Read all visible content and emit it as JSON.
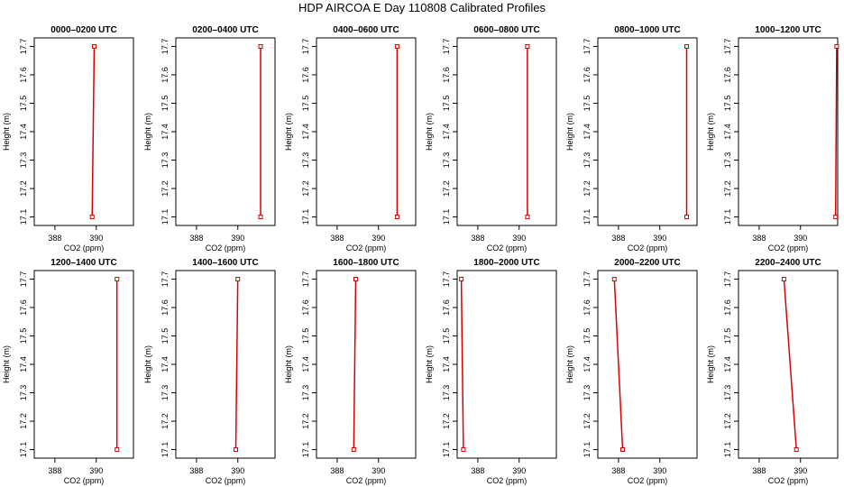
{
  "figure": {
    "title": "HDP AIRCOA E  Day 110808  Calibrated Profiles"
  },
  "colors": {
    "profile": "#dd0000",
    "axis": "#000000"
  },
  "chart_data": [
    {
      "type": "line",
      "title": "0000–0200 UTC",
      "xlabel": "CO2 (ppm)",
      "ylabel": "Height (m)",
      "xlim": [
        387.0,
        391.8
      ],
      "ylim": [
        17.07,
        17.73
      ],
      "xticks": [
        388,
        390
      ],
      "yticks": [
        17.1,
        17.2,
        17.3,
        17.4,
        17.5,
        17.6,
        17.7
      ],
      "grid": false,
      "series": [
        {
          "x": [
            389.8,
            389.9
          ],
          "y": [
            17.1,
            17.7
          ]
        }
      ]
    },
    {
      "type": "line",
      "title": "0200–0400 UTC",
      "xlabel": "CO2 (ppm)",
      "ylabel": "Height (m)",
      "xlim": [
        387.0,
        391.8
      ],
      "ylim": [
        17.07,
        17.73
      ],
      "xticks": [
        388,
        390
      ],
      "yticks": [
        17.1,
        17.2,
        17.3,
        17.4,
        17.5,
        17.6,
        17.7
      ],
      "grid": false,
      "series": [
        {
          "x": [
            391.1,
            391.1
          ],
          "y": [
            17.1,
            17.7
          ]
        }
      ]
    },
    {
      "type": "line",
      "title": "0400–0600 UTC",
      "xlabel": "CO2 (ppm)",
      "ylabel": "Height (m)",
      "xlim": [
        387.0,
        391.8
      ],
      "ylim": [
        17.07,
        17.73
      ],
      "xticks": [
        388,
        390
      ],
      "yticks": [
        17.1,
        17.2,
        17.3,
        17.4,
        17.5,
        17.6,
        17.7
      ],
      "grid": false,
      "series": [
        {
          "x": [
            390.9,
            390.9
          ],
          "y": [
            17.1,
            17.7
          ]
        }
      ]
    },
    {
      "type": "line",
      "title": "0600–0800 UTC",
      "xlabel": "CO2 (ppm)",
      "ylabel": "Height (m)",
      "xlim": [
        387.0,
        391.8
      ],
      "ylim": [
        17.07,
        17.73
      ],
      "xticks": [
        388,
        390
      ],
      "yticks": [
        17.1,
        17.2,
        17.3,
        17.4,
        17.5,
        17.6,
        17.7
      ],
      "grid": false,
      "series": [
        {
          "x": [
            390.4,
            390.4
          ],
          "y": [
            17.1,
            17.7
          ]
        }
      ]
    },
    {
      "type": "line",
      "title": "0800–1000 UTC",
      "xlabel": "CO2 (ppm)",
      "ylabel": "Height (m)",
      "xlim": [
        387.0,
        391.8
      ],
      "ylim": [
        17.07,
        17.73
      ],
      "xticks": [
        388,
        390
      ],
      "yticks": [
        17.1,
        17.2,
        17.3,
        17.4,
        17.5,
        17.6,
        17.7
      ],
      "grid": false,
      "series": [
        {
          "x": [
            391.3,
            391.3
          ],
          "y": [
            17.1,
            17.7
          ]
        }
      ]
    },
    {
      "type": "line",
      "title": "1000–1200 UTC",
      "xlabel": "CO2 (ppm)",
      "ylabel": "Height (m)",
      "xlim": [
        387.0,
        391.8
      ],
      "ylim": [
        17.07,
        17.73
      ],
      "xticks": [
        388,
        390
      ],
      "yticks": [
        17.1,
        17.2,
        17.3,
        17.4,
        17.5,
        17.6,
        17.7
      ],
      "grid": false,
      "series": [
        {
          "x": [
            391.7,
            391.75
          ],
          "y": [
            17.1,
            17.7
          ]
        }
      ]
    },
    {
      "type": "line",
      "title": "1200–1400 UTC",
      "xlabel": "CO2 (ppm)",
      "ylabel": "Height (m)",
      "xlim": [
        387.0,
        391.8
      ],
      "ylim": [
        17.07,
        17.73
      ],
      "xticks": [
        388,
        390
      ],
      "yticks": [
        17.1,
        17.2,
        17.3,
        17.4,
        17.5,
        17.6,
        17.7
      ],
      "grid": false,
      "series": [
        {
          "x": [
            391.0,
            391.0
          ],
          "y": [
            17.1,
            17.7
          ]
        }
      ]
    },
    {
      "type": "line",
      "title": "1400–1600 UTC",
      "xlabel": "CO2 (ppm)",
      "ylabel": "Height (m)",
      "xlim": [
        387.0,
        391.8
      ],
      "ylim": [
        17.07,
        17.73
      ],
      "xticks": [
        388,
        390
      ],
      "yticks": [
        17.1,
        17.2,
        17.3,
        17.4,
        17.5,
        17.6,
        17.7
      ],
      "grid": false,
      "series": [
        {
          "x": [
            389.9,
            390.0
          ],
          "y": [
            17.1,
            17.7
          ]
        }
      ]
    },
    {
      "type": "line",
      "title": "1600–1800 UTC",
      "xlabel": "CO2 (ppm)",
      "ylabel": "Height (m)",
      "xlim": [
        387.0,
        391.8
      ],
      "ylim": [
        17.07,
        17.73
      ],
      "xticks": [
        388,
        390
      ],
      "yticks": [
        17.1,
        17.2,
        17.3,
        17.4,
        17.5,
        17.6,
        17.7
      ],
      "grid": false,
      "series": [
        {
          "x": [
            388.8,
            388.9
          ],
          "y": [
            17.1,
            17.7
          ]
        }
      ]
    },
    {
      "type": "line",
      "title": "1800–2000 UTC",
      "xlabel": "CO2 (ppm)",
      "ylabel": "Height (m)",
      "xlim": [
        387.0,
        391.8
      ],
      "ylim": [
        17.07,
        17.73
      ],
      "xticks": [
        388,
        390
      ],
      "yticks": [
        17.1,
        17.2,
        17.3,
        17.4,
        17.5,
        17.6,
        17.7
      ],
      "grid": false,
      "series": [
        {
          "x": [
            387.3,
            387.2
          ],
          "y": [
            17.1,
            17.7
          ]
        }
      ]
    },
    {
      "type": "line",
      "title": "2000–2200 UTC",
      "xlabel": "CO2 (ppm)",
      "ylabel": "Height (m)",
      "xlim": [
        387.0,
        391.8
      ],
      "ylim": [
        17.07,
        17.73
      ],
      "xticks": [
        388,
        390
      ],
      "yticks": [
        17.1,
        17.2,
        17.3,
        17.4,
        17.5,
        17.6,
        17.7
      ],
      "grid": false,
      "series": [
        {
          "x": [
            388.2,
            387.8
          ],
          "y": [
            17.1,
            17.7
          ]
        }
      ]
    },
    {
      "type": "line",
      "title": "2200–2400 UTC",
      "xlabel": "CO2 (ppm)",
      "ylabel": "Height (m)",
      "xlim": [
        387.0,
        391.8
      ],
      "ylim": [
        17.07,
        17.73
      ],
      "xticks": [
        388,
        390
      ],
      "yticks": [
        17.1,
        17.2,
        17.3,
        17.4,
        17.5,
        17.6,
        17.7
      ],
      "grid": false,
      "series": [
        {
          "x": [
            389.8,
            389.2
          ],
          "y": [
            17.1,
            17.7
          ]
        }
      ]
    }
  ]
}
